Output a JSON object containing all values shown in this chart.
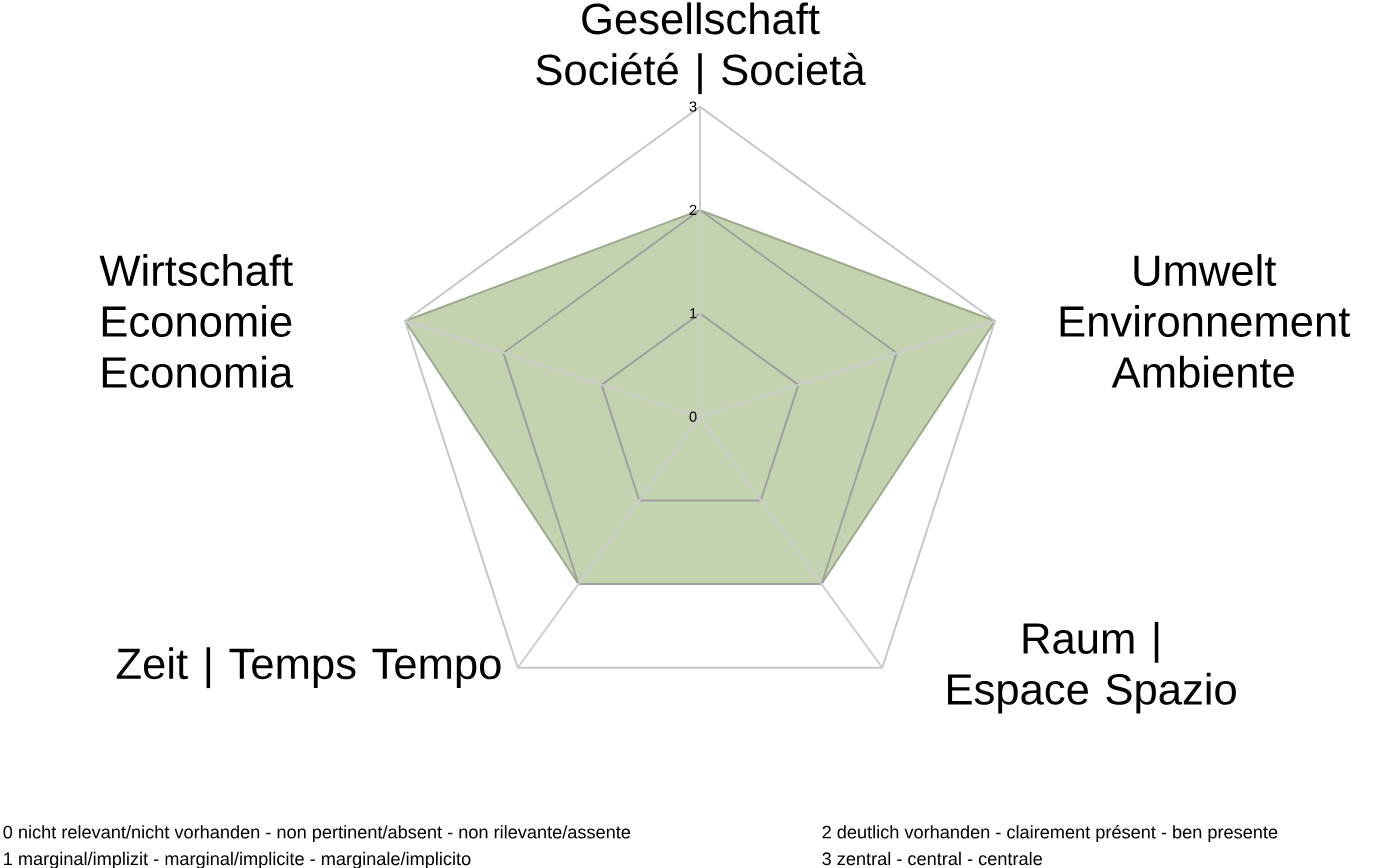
{
  "chart_data": {
    "type": "radar",
    "categories": [
      "Gesellschaft Société | Società",
      "Umwelt Environnement Ambiente",
      "Raum | Espace Spazio",
      "Zeit | Temps Tempo",
      "Wirtschaft Economie Economia"
    ],
    "series": [
      {
        "color": "#c3d3b0",
        "values": [
          2,
          3,
          2,
          2,
          3
        ]
      }
    ],
    "ylim": [
      0,
      3
    ],
    "yticks": [
      0,
      1,
      2,
      3
    ],
    "grid": true,
    "annotations": [
      "0 nicht relevant/nicht  vorhanden  - non pertinent/absent - non rilevante/assente",
      "1 marginal/implizit - marginal/implicite - marginale/implicito",
      "2 deutlich vorhanden  - clairement présent - ben presente",
      "3 zentral - central - centrale"
    ]
  }
}
